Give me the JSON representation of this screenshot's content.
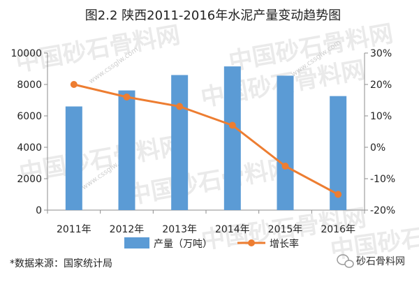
{
  "chart_data": {
    "type": "bar",
    "title": "图2.2 陕西2011-2016年水泥产量变动趋势图",
    "categories": [
      "2011年",
      "2012年",
      "2013年",
      "2014年",
      "2015年",
      "2016年"
    ],
    "series": [
      {
        "name": "产量（万吨）",
        "type": "bar",
        "axis": "left",
        "color": "#5B9BD5",
        "values": [
          6600,
          7620,
          8600,
          9150,
          8560,
          7260
        ]
      },
      {
        "name": "增长率",
        "type": "line",
        "axis": "right",
        "color": "#ED7D31",
        "values": [
          20,
          16,
          13,
          7,
          -6,
          -15
        ]
      }
    ],
    "y_left": {
      "min": 0,
      "max": 10000,
      "ticks": [
        0,
        2000,
        4000,
        6000,
        8000,
        10000
      ],
      "tick_labels": [
        "0",
        "2000",
        "4000",
        "6000",
        "8000",
        "10000"
      ]
    },
    "y_right": {
      "min": -20,
      "max": 30,
      "ticks": [
        -20,
        -10,
        0,
        10,
        20,
        30
      ],
      "tick_labels": [
        "-20%",
        "-10%",
        "0%",
        "10%",
        "20%",
        "30%"
      ]
    },
    "legend_position": "bottom",
    "grid": false
  },
  "source_note": "*数据来源：国家统计局",
  "watermark": {
    "text": "中国砂石骨料网",
    "url": "www.cssglw.com"
  },
  "brand": {
    "label": "砂石骨料网",
    "icon": "wechat-icon"
  }
}
